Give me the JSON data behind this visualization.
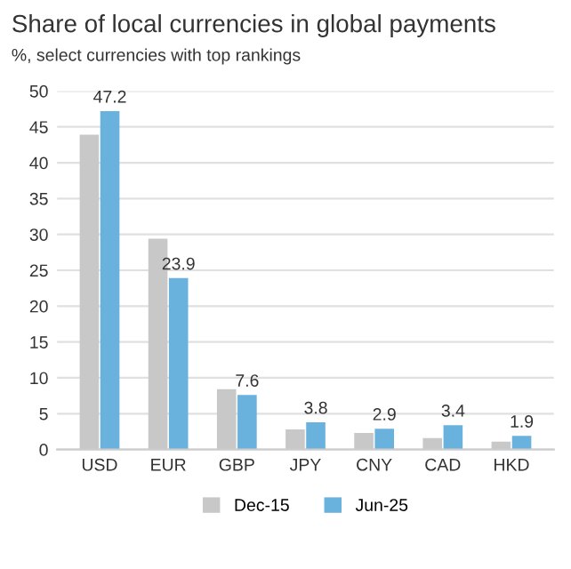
{
  "chart_data": {
    "type": "bar",
    "title": "Share of local currencies in global payments",
    "subtitle": "%, select currencies with top rankings",
    "categories": [
      "USD",
      "EUR",
      "GBP",
      "JPY",
      "CNY",
      "CAD",
      "HKD"
    ],
    "series": [
      {
        "name": "Dec-15",
        "color": "#c8c8c8",
        "values": [
          43.9,
          29.4,
          8.4,
          2.8,
          2.3,
          1.6,
          1.1
        ]
      },
      {
        "name": "Jun-25",
        "color": "#6ab2de",
        "values": [
          47.2,
          23.9,
          7.6,
          3.8,
          2.9,
          3.4,
          1.9
        ],
        "value_labels": [
          "47.2",
          "23.9",
          "7.6",
          "3.8",
          "2.9",
          "3.4",
          "1.9"
        ]
      }
    ],
    "ylim": [
      0,
      50
    ],
    "yticks": [
      0,
      5,
      10,
      15,
      20,
      25,
      30,
      35,
      40,
      45,
      50
    ],
    "grid": "y",
    "legend": "bottom"
  }
}
